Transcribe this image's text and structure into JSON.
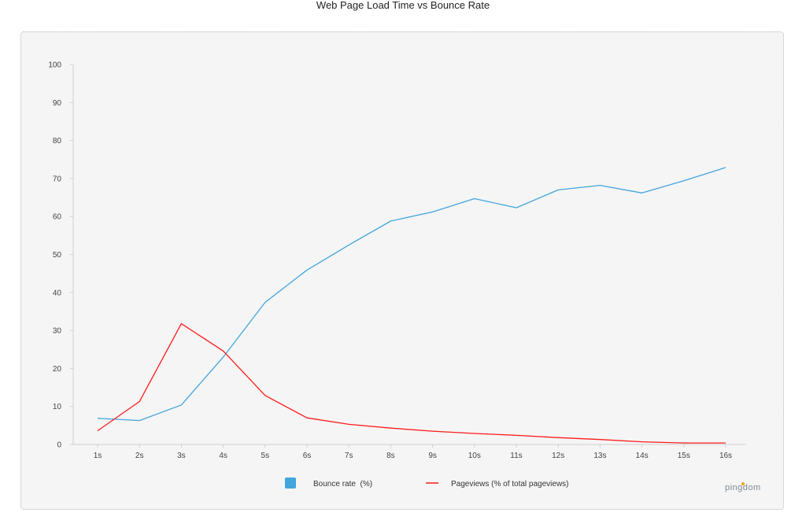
{
  "title": "Web Page Load Time vs Bounce Rate",
  "logo_text": "pingdom",
  "colors": {
    "bounce": "#42a5dc",
    "pageviews": "#ff1a1a",
    "axis": "#cccccc",
    "panel": "#f5f5f5"
  },
  "chart_data": {
    "type": "line",
    "title": "Web Page Load Time vs Bounce Rate",
    "categories": [
      "1s",
      "2s",
      "3s",
      "4s",
      "5s",
      "6s",
      "7s",
      "8s",
      "9s",
      "10s",
      "11s",
      "12s",
      "13s",
      "14s",
      "15s",
      "16s"
    ],
    "y_ticks": [
      "0",
      "10",
      "20",
      "30",
      "40",
      "50",
      "60",
      "70",
      "80",
      "90",
      "100"
    ],
    "ylim": [
      0,
      100
    ],
    "grid": false,
    "legend_position": "bottom",
    "series": [
      {
        "name": "Bounce rate  (%)",
        "color": "#42a5dc",
        "values": [
          6.9,
          6.3,
          10.4,
          23.0,
          37.4,
          45.9,
          52.5,
          58.8,
          61.2,
          64.7,
          62.3,
          67.0,
          68.2,
          66.2,
          69.4,
          72.9
        ]
      },
      {
        "name": "Pageviews (% of total pageviews)",
        "color": "#ff1a1a",
        "values": [
          3.6,
          11.3,
          31.8,
          24.6,
          12.9,
          7.0,
          5.3,
          4.3,
          3.5,
          2.9,
          2.4,
          1.8,
          1.3,
          0.7,
          0.4,
          0.4
        ]
      }
    ]
  }
}
